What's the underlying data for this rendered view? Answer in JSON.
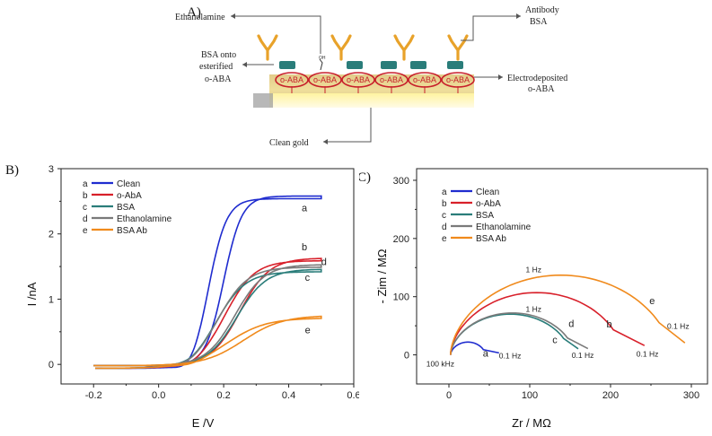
{
  "panel_a": {
    "label": "A)",
    "callouts": {
      "ethanolamine": "Ethanolamine",
      "antibody": "Antibody",
      "bsa": "BSA",
      "bsa_onto_line1": "BSA onto",
      "bsa_onto_line2": "esterified",
      "bsa_onto_line3": "o-ABA",
      "electrodeposited_line1": "Electrodeposited",
      "electrodeposited_line2": "o-ABA",
      "clean_gold": "Clean gold"
    },
    "molecule_label": "o-ABA",
    "oh_label": "OH",
    "colors": {
      "gold": "#d9b432",
      "ellipse": "#c8202b",
      "protein": "#2a7d7a",
      "antibody": "#e8a22a"
    }
  },
  "chart_data": [
    {
      "type": "line",
      "panel_label": "B)",
      "xlabel": "E /V",
      "ylabel": "I /nA",
      "xlim": [
        -0.3,
        0.6
      ],
      "ylim": [
        -0.3,
        3
      ],
      "xticks": [
        "-0.2",
        "0.0",
        "0.2",
        "0.4",
        "0.6"
      ],
      "yticks": [
        "0",
        "1",
        "2",
        "3"
      ],
      "grid": false,
      "legend_position": "top-left",
      "legend": [
        {
          "letter": "a",
          "name": "Clean",
          "color": "#1f2ccf"
        },
        {
          "letter": "b",
          "name": "o-AbA",
          "color": "#d8202a"
        },
        {
          "letter": "c",
          "name": "BSA",
          "color": "#2a7d7a"
        },
        {
          "letter": "d",
          "name": "Ethanolamine",
          "color": "#7a7a7a"
        },
        {
          "letter": "e",
          "name": "BSA Ab",
          "color": "#f08a1c"
        }
      ],
      "series": [
        {
          "letter": "a",
          "color": "#1f2ccf",
          "plateau": 2.6,
          "e_half": 0.2,
          "width": 0.028,
          "hyst": 0.045,
          "dip": 0.12
        },
        {
          "letter": "b",
          "color": "#d8202a",
          "plateau": 1.65,
          "e_half": 0.25,
          "width": 0.045,
          "hyst": 0.045,
          "dip": 0.04
        },
        {
          "letter": "c",
          "color": "#2a7d7a",
          "plateau": 1.48,
          "e_half": 0.24,
          "width": 0.045,
          "hyst": 0.06,
          "dip": 0.04
        },
        {
          "letter": "d",
          "color": "#7a7a7a",
          "plateau": 1.55,
          "e_half": 0.235,
          "width": 0.045,
          "hyst": 0.05,
          "dip": 0.04
        },
        {
          "letter": "e",
          "color": "#f08a1c",
          "plateau": 0.77,
          "e_half": 0.26,
          "width": 0.06,
          "hyst": 0.05,
          "dip": 0.03
        }
      ]
    },
    {
      "type": "line",
      "panel_label": "C)",
      "xlabel": "Zr / MΩ",
      "ylabel": "- Zim / MΩ",
      "xlim": [
        -40,
        320
      ],
      "ylim": [
        -50,
        320
      ],
      "xticks": [
        "0",
        "100",
        "200",
        "300"
      ],
      "yticks": [
        "0",
        "100",
        "200",
        "300"
      ],
      "grid": false,
      "legend_position": "top-left",
      "legend": [
        {
          "letter": "a",
          "name": "Clean",
          "color": "#1f2ccf"
        },
        {
          "letter": "b",
          "name": "o-AbA",
          "color": "#d8202a"
        },
        {
          "letter": "c",
          "name": "BSA",
          "color": "#2a7d7a"
        },
        {
          "letter": "d",
          "name": "Ethanolamine",
          "color": "#7a7a7a"
        },
        {
          "letter": "e",
          "name": "BSA Ab",
          "color": "#f08a1c"
        }
      ],
      "series": [
        {
          "letter": "a",
          "color": "#1f2ccf",
          "r0": 2,
          "r1": 62,
          "rmax": 45,
          "peak": 22
        },
        {
          "letter": "b",
          "color": "#d8202a",
          "r0": 2,
          "r1": 242,
          "rmax": 215,
          "peak": 107
        },
        {
          "letter": "c",
          "color": "#2a7d7a",
          "r0": 2,
          "r1": 160,
          "rmax": 150,
          "peak": 70
        },
        {
          "letter": "d",
          "color": "#7a7a7a",
          "r0": 2,
          "r1": 172,
          "rmax": 155,
          "peak": 72
        },
        {
          "letter": "e",
          "color": "#f08a1c",
          "r0": 2,
          "r1": 292,
          "rmax": 275,
          "peak": 137
        }
      ],
      "annotations": {
        "hf": "100 kHz",
        "lf_a": "0.1 Hz",
        "lf_c": "0.1 Hz",
        "lf_b": "0.1 Hz",
        "lf_e": "0.1 Hz",
        "peak_e": "1 Hz",
        "peak_d": "1 Hz",
        "letter_a": "a",
        "letter_b": "b",
        "letter_c": "c",
        "letter_d": "d",
        "letter_e": "e"
      }
    }
  ]
}
